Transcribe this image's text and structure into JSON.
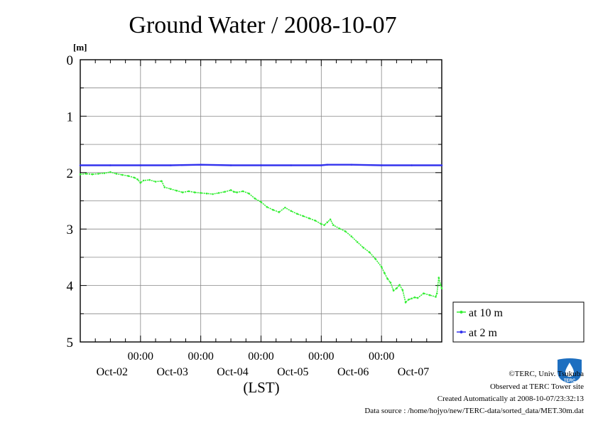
{
  "chart_data": {
    "type": "line",
    "title": "Ground Water / 2008-10-07",
    "yunit": "[m]",
    "xlabel": "(LST)",
    "ylim": [
      0,
      5
    ],
    "y_inverted": true,
    "yticks": [
      "0",
      "1",
      "2",
      "3",
      "4",
      "5"
    ],
    "xlim": [
      0,
      6
    ],
    "x_ticks": [
      {
        "x": 1,
        "time": "00:00",
        "date": "Oct-02"
      },
      {
        "x": 2,
        "time": "00:00",
        "date": "Oct-03"
      },
      {
        "x": 3,
        "time": "00:00",
        "date": "Oct-04"
      },
      {
        "x": 4,
        "time": "00:00",
        "date": "Oct-05"
      },
      {
        "x": 5,
        "time": "00:00",
        "date": "Oct-06"
      },
      {
        "x": 6,
        "time": "",
        "date": "Oct-07"
      }
    ],
    "grid": true,
    "legend_position": "right",
    "series": [
      {
        "name": "at 10 m",
        "color": "#33ee33",
        "points": [
          [
            0.0,
            2.03
          ],
          [
            0.1,
            2.02
          ],
          [
            0.2,
            2.03
          ],
          [
            0.3,
            2.02
          ],
          [
            0.4,
            2.01
          ],
          [
            0.5,
            1.99
          ],
          [
            0.6,
            2.02
          ],
          [
            0.7,
            2.04
          ],
          [
            0.8,
            2.06
          ],
          [
            0.9,
            2.09
          ],
          [
            0.95,
            2.12
          ],
          [
            1.0,
            2.18
          ],
          [
            1.05,
            2.14
          ],
          [
            1.15,
            2.13
          ],
          [
            1.25,
            2.16
          ],
          [
            1.35,
            2.15
          ],
          [
            1.4,
            2.26
          ],
          [
            1.5,
            2.29
          ],
          [
            1.6,
            2.32
          ],
          [
            1.7,
            2.35
          ],
          [
            1.8,
            2.33
          ],
          [
            1.9,
            2.35
          ],
          [
            2.0,
            2.36
          ],
          [
            2.1,
            2.37
          ],
          [
            2.2,
            2.38
          ],
          [
            2.3,
            2.36
          ],
          [
            2.4,
            2.34
          ],
          [
            2.5,
            2.31
          ],
          [
            2.55,
            2.34
          ],
          [
            2.6,
            2.35
          ],
          [
            2.7,
            2.33
          ],
          [
            2.8,
            2.37
          ],
          [
            2.9,
            2.46
          ],
          [
            3.0,
            2.52
          ],
          [
            3.1,
            2.61
          ],
          [
            3.2,
            2.66
          ],
          [
            3.3,
            2.7
          ],
          [
            3.4,
            2.62
          ],
          [
            3.5,
            2.68
          ],
          [
            3.6,
            2.73
          ],
          [
            3.7,
            2.77
          ],
          [
            3.8,
            2.81
          ],
          [
            3.9,
            2.85
          ],
          [
            4.0,
            2.91
          ],
          [
            4.05,
            2.93
          ],
          [
            4.1,
            2.88
          ],
          [
            4.15,
            2.83
          ],
          [
            4.2,
            2.93
          ],
          [
            4.3,
            2.99
          ],
          [
            4.4,
            3.04
          ],
          [
            4.5,
            3.13
          ],
          [
            4.6,
            3.23
          ],
          [
            4.7,
            3.33
          ],
          [
            4.8,
            3.41
          ],
          [
            4.9,
            3.53
          ],
          [
            5.0,
            3.67
          ],
          [
            5.05,
            3.78
          ],
          [
            5.1,
            3.88
          ],
          [
            5.15,
            3.95
          ],
          [
            5.2,
            4.09
          ],
          [
            5.25,
            4.05
          ],
          [
            5.3,
            3.99
          ],
          [
            5.35,
            4.08
          ],
          [
            5.4,
            4.3
          ],
          [
            5.45,
            4.25
          ],
          [
            5.5,
            4.23
          ],
          [
            5.55,
            4.21
          ],
          [
            5.6,
            4.22
          ],
          [
            5.7,
            4.14
          ],
          [
            5.8,
            4.17
          ],
          [
            5.9,
            4.2
          ],
          [
            5.92,
            4.14
          ],
          [
            5.95,
            3.86
          ],
          [
            5.98,
            3.99
          ],
          [
            6.0,
            4.05
          ]
        ]
      },
      {
        "name": "at 2 m",
        "color": "#3333ee",
        "points": [
          [
            0.0,
            1.87
          ],
          [
            0.5,
            1.87
          ],
          [
            1.0,
            1.87
          ],
          [
            1.5,
            1.87
          ],
          [
            2.0,
            1.86
          ],
          [
            2.5,
            1.87
          ],
          [
            3.0,
            1.87
          ],
          [
            3.5,
            1.87
          ],
          [
            4.0,
            1.87
          ],
          [
            4.1,
            1.86
          ],
          [
            4.5,
            1.86
          ],
          [
            5.0,
            1.87
          ],
          [
            5.5,
            1.87
          ],
          [
            6.0,
            1.87
          ]
        ]
      }
    ]
  },
  "credits": {
    "copyright": "©TERC, Univ. Tsukuba",
    "observed": "Observed at TERC Tower site",
    "created": "Created Automatically at 2008-10-07/23:32:13",
    "source": "Data source : /home/hojyo/new/TERC-data/sorted_data/MET.30m.dat"
  },
  "logo": {
    "text": "TERC",
    "color": "#1e6fc0"
  }
}
